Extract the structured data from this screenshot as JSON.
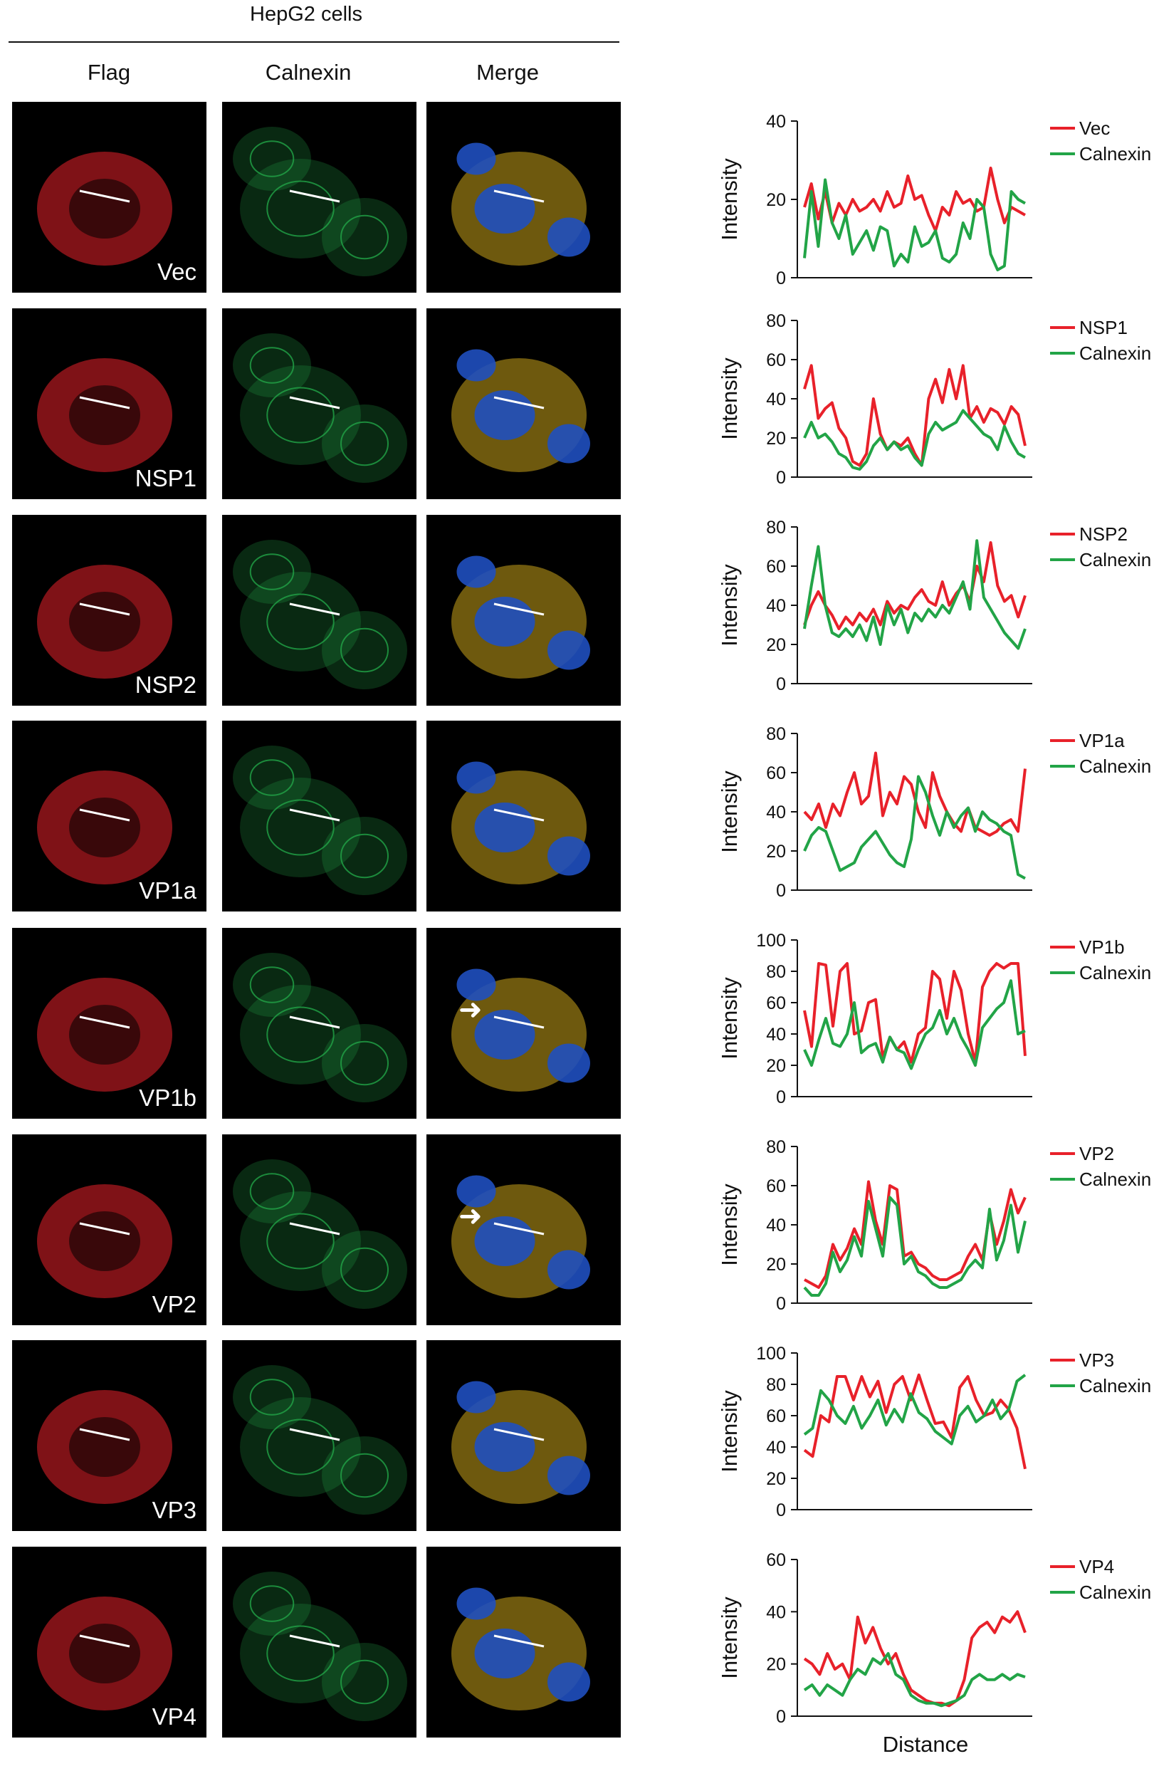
{
  "figure": {
    "title": "HepG2 cells",
    "columns": [
      "Flag",
      "Calnexin",
      "Merge"
    ],
    "x_axis_label": "Distance"
  },
  "rows": [
    {
      "label": "Vec",
      "arrow": false
    },
    {
      "label": "NSP1",
      "arrow": false
    },
    {
      "label": "NSP2",
      "arrow": false
    },
    {
      "label": "VP1a",
      "arrow": false
    },
    {
      "label": "VP1b",
      "arrow": true
    },
    {
      "label": "VP2",
      "arrow": true
    },
    {
      "label": "VP3",
      "arrow": false
    },
    {
      "label": "VP4",
      "arrow": false
    }
  ],
  "colors": {
    "red": "#e8212a",
    "green": "#22a447",
    "nucleus": "#1f4fbf",
    "background": "#000000"
  },
  "chart_data": [
    {
      "type": "line",
      "ylabel": "Intensity",
      "xlabel": "",
      "ylim": [
        0,
        40
      ],
      "yticks": [
        0,
        20,
        40
      ],
      "series": [
        {
          "name": "Vec",
          "color": "#e8212a",
          "values": [
            18,
            24,
            15,
            22,
            14,
            19,
            16,
            20,
            17,
            18,
            20,
            17,
            22,
            18,
            19,
            26,
            20,
            21,
            16,
            12,
            18,
            16,
            22,
            19,
            20,
            17,
            18,
            28,
            20,
            14,
            18,
            17,
            16
          ]
        },
        {
          "name": "Calnexin",
          "color": "#22a447",
          "values": [
            5,
            22,
            8,
            25,
            14,
            10,
            16,
            6,
            9,
            12,
            7,
            13,
            12,
            3,
            6,
            4,
            13,
            8,
            9,
            12,
            5,
            4,
            6,
            14,
            10,
            20,
            18,
            6,
            2,
            3,
            22,
            20,
            19
          ]
        }
      ]
    },
    {
      "type": "line",
      "ylabel": "Intensity",
      "xlabel": "",
      "ylim": [
        0,
        80
      ],
      "yticks": [
        0,
        20,
        40,
        60,
        80
      ],
      "series": [
        {
          "name": "NSP1",
          "color": "#e8212a",
          "values": [
            45,
            57,
            30,
            35,
            38,
            25,
            20,
            8,
            6,
            12,
            40,
            22,
            14,
            18,
            16,
            20,
            12,
            6,
            40,
            50,
            38,
            55,
            40,
            57,
            30,
            36,
            28,
            35,
            33,
            27,
            36,
            32,
            16
          ]
        },
        {
          "name": "Calnexin",
          "color": "#22a447",
          "values": [
            20,
            28,
            20,
            22,
            18,
            12,
            10,
            5,
            4,
            8,
            16,
            20,
            14,
            18,
            14,
            16,
            10,
            6,
            22,
            28,
            24,
            26,
            28,
            34,
            30,
            26,
            22,
            20,
            14,
            26,
            18,
            12,
            10
          ]
        }
      ]
    },
    {
      "type": "line",
      "ylabel": "Intensity",
      "xlabel": "",
      "ylim": [
        0,
        80
      ],
      "yticks": [
        0,
        20,
        40,
        60,
        80
      ],
      "series": [
        {
          "name": "NSP2",
          "color": "#e8212a",
          "values": [
            30,
            40,
            47,
            40,
            35,
            28,
            34,
            30,
            36,
            32,
            38,
            30,
            42,
            36,
            40,
            38,
            44,
            48,
            42,
            40,
            52,
            40,
            46,
            50,
            42,
            60,
            52,
            72,
            50,
            42,
            45,
            34,
            45
          ]
        },
        {
          "name": "Calnexin",
          "color": "#22a447",
          "values": [
            28,
            50,
            70,
            40,
            26,
            24,
            28,
            24,
            30,
            22,
            34,
            20,
            40,
            30,
            38,
            26,
            36,
            32,
            38,
            34,
            40,
            36,
            44,
            52,
            38,
            73,
            44,
            38,
            32,
            26,
            22,
            18,
            28
          ]
        }
      ]
    },
    {
      "type": "line",
      "ylabel": "Intensity",
      "xlabel": "",
      "ylim": [
        0,
        80
      ],
      "yticks": [
        0,
        20,
        40,
        60,
        80
      ],
      "series": [
        {
          "name": "VP1a",
          "color": "#e8212a",
          "values": [
            40,
            36,
            44,
            32,
            44,
            38,
            50,
            60,
            44,
            48,
            70,
            38,
            50,
            44,
            58,
            54,
            40,
            32,
            60,
            48,
            40,
            34,
            30,
            42,
            32,
            30,
            28,
            30,
            34,
            36,
            30,
            62
          ]
        },
        {
          "name": "Calnexin",
          "color": "#22a447",
          "values": [
            20,
            28,
            32,
            30,
            20,
            10,
            12,
            14,
            22,
            26,
            30,
            24,
            18,
            14,
            12,
            26,
            58,
            50,
            38,
            28,
            40,
            32,
            38,
            42,
            30,
            40,
            36,
            34,
            30,
            28,
            8,
            6
          ]
        }
      ]
    },
    {
      "type": "line",
      "ylabel": "Intensity",
      "xlabel": "",
      "ylim": [
        0,
        100
      ],
      "yticks": [
        0,
        20,
        40,
        60,
        80,
        100
      ],
      "series": [
        {
          "name": "VP1b",
          "color": "#e8212a",
          "values": [
            55,
            32,
            85,
            84,
            45,
            80,
            85,
            40,
            42,
            60,
            62,
            25,
            38,
            30,
            35,
            22,
            40,
            44,
            80,
            75,
            50,
            80,
            68,
            40,
            22,
            70,
            80,
            85,
            82,
            85,
            85,
            26
          ]
        },
        {
          "name": "Calnexin",
          "color": "#22a447",
          "values": [
            30,
            20,
            36,
            50,
            34,
            32,
            40,
            60,
            28,
            32,
            34,
            22,
            38,
            30,
            28,
            18,
            30,
            40,
            44,
            55,
            40,
            50,
            38,
            30,
            20,
            44,
            50,
            56,
            60,
            74,
            40,
            42
          ]
        }
      ]
    },
    {
      "type": "line",
      "ylabel": "Intensity",
      "xlabel": "",
      "ylim": [
        0,
        80
      ],
      "yticks": [
        0,
        20,
        40,
        60,
        80
      ],
      "series": [
        {
          "name": "VP2",
          "color": "#e8212a",
          "values": [
            12,
            10,
            8,
            14,
            30,
            22,
            28,
            38,
            30,
            62,
            42,
            30,
            60,
            58,
            24,
            26,
            20,
            18,
            14,
            12,
            12,
            14,
            16,
            24,
            30,
            22,
            46,
            30,
            42,
            58,
            46,
            54
          ]
        },
        {
          "name": "Calnexin",
          "color": "#22a447",
          "values": [
            8,
            4,
            4,
            10,
            26,
            16,
            22,
            34,
            24,
            52,
            38,
            24,
            54,
            50,
            20,
            24,
            16,
            14,
            10,
            8,
            8,
            10,
            12,
            18,
            22,
            18,
            48,
            22,
            32,
            50,
            26,
            42
          ]
        }
      ]
    },
    {
      "type": "line",
      "ylabel": "Intensity",
      "xlabel": "",
      "ylim": [
        0,
        100
      ],
      "yticks": [
        0,
        20,
        40,
        60,
        80,
        100
      ],
      "series": [
        {
          "name": "VP3",
          "color": "#e8212a",
          "values": [
            38,
            34,
            60,
            56,
            85,
            85,
            70,
            85,
            72,
            82,
            62,
            80,
            85,
            70,
            86,
            70,
            55,
            56,
            46,
            78,
            85,
            70,
            60,
            62,
            70,
            64,
            52,
            26
          ]
        },
        {
          "name": "Calnexin",
          "color": "#22a447",
          "values": [
            48,
            52,
            76,
            70,
            60,
            55,
            66,
            52,
            60,
            70,
            54,
            64,
            56,
            74,
            62,
            58,
            50,
            46,
            42,
            60,
            66,
            56,
            60,
            70,
            58,
            64,
            82,
            86
          ]
        }
      ]
    },
    {
      "type": "line",
      "ylabel": "Intensity",
      "xlabel": "Distance",
      "ylim": [
        0,
        60
      ],
      "yticks": [
        0,
        20,
        40,
        60
      ],
      "series": [
        {
          "name": "VP4",
          "color": "#e8212a",
          "values": [
            22,
            20,
            16,
            24,
            18,
            20,
            14,
            38,
            28,
            34,
            26,
            20,
            24,
            16,
            10,
            8,
            6,
            5,
            5,
            4,
            6,
            14,
            30,
            34,
            36,
            32,
            38,
            36,
            40,
            32
          ]
        },
        {
          "name": "Calnexin",
          "color": "#22a447",
          "values": [
            10,
            12,
            8,
            12,
            10,
            8,
            14,
            18,
            16,
            22,
            20,
            24,
            16,
            14,
            8,
            6,
            5,
            5,
            4,
            5,
            6,
            8,
            14,
            16,
            14,
            14,
            16,
            14,
            16,
            15
          ]
        }
      ]
    }
  ]
}
